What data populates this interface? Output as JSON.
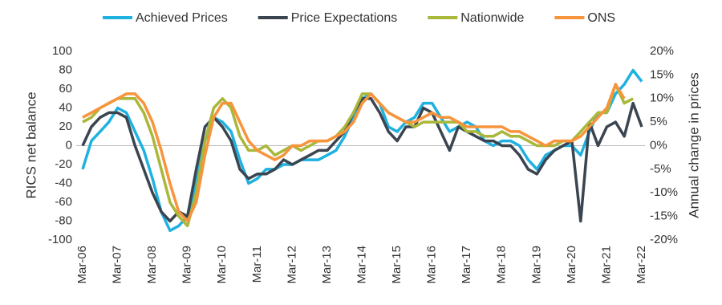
{
  "chart_data": {
    "type": "line",
    "categories": [
      "Mar-06",
      null,
      null,
      null,
      "Mar-07",
      null,
      null,
      null,
      "Mar-08",
      null,
      null,
      null,
      "Mar-09",
      null,
      null,
      null,
      "Mar-10",
      null,
      null,
      null,
      "Mar-11",
      null,
      null,
      null,
      "Mar-12",
      null,
      null,
      null,
      "Mar-13",
      null,
      null,
      null,
      "Mar-14",
      null,
      null,
      null,
      "Mar-15",
      null,
      null,
      null,
      "Mar-16",
      null,
      null,
      null,
      "Mar-17",
      null,
      null,
      null,
      "Mar-18",
      null,
      null,
      null,
      "Mar-19",
      null,
      null,
      null,
      "Mar-20",
      null,
      null,
      null,
      "Mar-21",
      null,
      null,
      null,
      "Mar-22"
    ],
    "ylabel": "RICS net balance",
    "y2label": "Annual change in prices",
    "ylim": [
      -100,
      100
    ],
    "yticks": [
      100,
      80,
      60,
      40,
      20,
      0,
      -20,
      -40,
      -60,
      -80,
      -100
    ],
    "y2lim": [
      -20,
      20
    ],
    "y2ticks": [
      {
        "value": 20,
        "label": "20%"
      },
      {
        "value": 15,
        "label": "15%"
      },
      {
        "value": 10,
        "label": "10%"
      },
      {
        "value": 5,
        "label": "5%"
      },
      {
        "value": 0,
        "label": "0%"
      },
      {
        "value": -5,
        "label": "-5%"
      },
      {
        "value": -10,
        "label": "-10%"
      },
      {
        "value": -15,
        "label": "-15%"
      },
      {
        "value": -20,
        "label": "-20%"
      }
    ],
    "legend": "top",
    "series": [
      {
        "name": "Achieved Prices",
        "color": "#1fb1e0",
        "values": [
          -25,
          5,
          15,
          25,
          40,
          35,
          15,
          -5,
          -35,
          -70,
          -90,
          -85,
          -75,
          -40,
          5,
          30,
          25,
          15,
          -15,
          -40,
          -35,
          -25,
          -25,
          -20,
          -20,
          -15,
          -15,
          -15,
          -10,
          -5,
          10,
          30,
          50,
          55,
          45,
          20,
          15,
          25,
          30,
          45,
          45,
          30,
          15,
          20,
          25,
          20,
          5,
          0,
          5,
          5,
          0,
          -15,
          -25,
          -10,
          -5,
          0,
          0,
          -10,
          15,
          35,
          35,
          55,
          65,
          80,
          68
        ]
      },
      {
        "name": "Price Expectations",
        "color": "#3a4550",
        "values": [
          0,
          20,
          30,
          35,
          35,
          30,
          0,
          -25,
          -50,
          -70,
          -80,
          -70,
          -75,
          -25,
          20,
          30,
          20,
          5,
          -25,
          -35,
          -30,
          -30,
          -25,
          -15,
          -20,
          -15,
          -10,
          -5,
          -5,
          5,
          15,
          35,
          50,
          50,
          35,
          15,
          5,
          20,
          20,
          40,
          35,
          15,
          -5,
          20,
          15,
          10,
          5,
          5,
          0,
          0,
          -10,
          -25,
          -30,
          -15,
          -5,
          0,
          5,
          -80,
          25,
          0,
          20,
          25,
          10,
          45,
          20
        ]
      },
      {
        "name": "Nationwide",
        "color": "#a9b73a",
        "axis": "y2",
        "values": [
          5,
          6,
          8,
          9,
          10,
          10,
          10,
          7,
          2,
          -5,
          -12,
          -15,
          -17,
          -10,
          1,
          8,
          10,
          8,
          2,
          -1,
          -1,
          0,
          -2,
          -1,
          0,
          -1,
          0,
          1,
          1,
          2,
          4,
          7,
          11,
          11,
          9,
          7,
          6,
          5,
          4,
          5,
          5,
          5,
          5,
          5,
          3,
          3,
          2,
          2,
          3,
          2,
          2,
          1,
          0,
          0,
          0,
          1,
          1,
          3,
          5,
          7,
          7,
          13,
          9,
          10,
          null
        ]
      },
      {
        "name": "ONS",
        "color": "#f7943c",
        "axis": "y2",
        "values": [
          6,
          7,
          8,
          9,
          10,
          11,
          11,
          9,
          5,
          -1,
          -8,
          -14,
          -16,
          -12,
          -2,
          6,
          9,
          9,
          5,
          1,
          -1,
          -2,
          -3,
          -2,
          0,
          0,
          1,
          1,
          1,
          2,
          3,
          5,
          9,
          11,
          9,
          7,
          6,
          5,
          5,
          6,
          7,
          6,
          6,
          5,
          4,
          4,
          4,
          4,
          4,
          3,
          3,
          2,
          1,
          0,
          1,
          1,
          1,
          2,
          4,
          6,
          8,
          13,
          10,
          null,
          null
        ]
      }
    ]
  }
}
